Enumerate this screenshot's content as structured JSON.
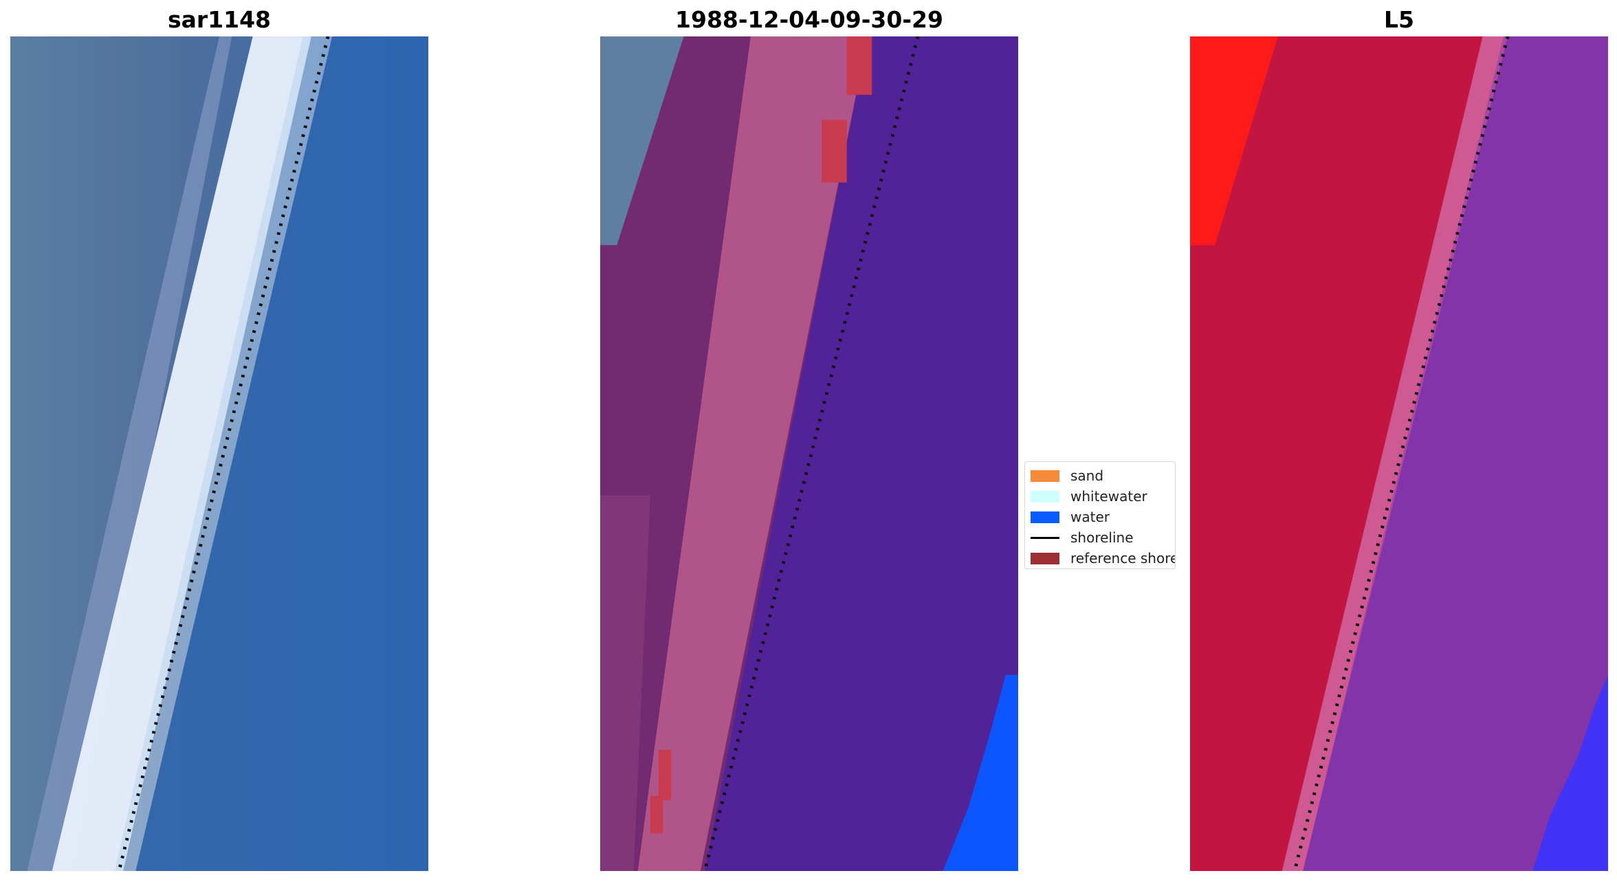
{
  "panels": [
    {
      "id": "rgb",
      "title": "sar1148",
      "colors": {
        "land": "#3f73a8",
        "water": "#2e64ae",
        "whitewater": "#e9f0fb",
        "shoreline": "#101010"
      }
    },
    {
      "id": "classified",
      "title": "1988-12-04-09-30-29",
      "colors": {
        "land_a": "#5f7fa0",
        "land_b": "#722a70",
        "sand_band": "#b8598d",
        "water": "#522398",
        "deep_water": "#0c55ff",
        "reference": "#c83a4d",
        "shoreline": "#101010"
      }
    },
    {
      "id": "index",
      "title": "L5",
      "colors": {
        "red": "#ff1a1a",
        "land": "#c21542",
        "band": "#cf5a93",
        "water": "#7a2aa0",
        "blue": "#3a34ff",
        "shoreline": "#101010"
      }
    }
  ],
  "legend": {
    "items": [
      {
        "label": "sand",
        "color": "#f58a3a",
        "type": "patch"
      },
      {
        "label": "whitewater",
        "color": "#cfffff",
        "type": "patch"
      },
      {
        "label": "water",
        "color": "#0a5cff",
        "type": "patch"
      },
      {
        "label": "shoreline",
        "color": "#000000",
        "type": "line"
      },
      {
        "label": "reference shoreline",
        "color": "#9b2f33",
        "type": "patch"
      }
    ]
  }
}
